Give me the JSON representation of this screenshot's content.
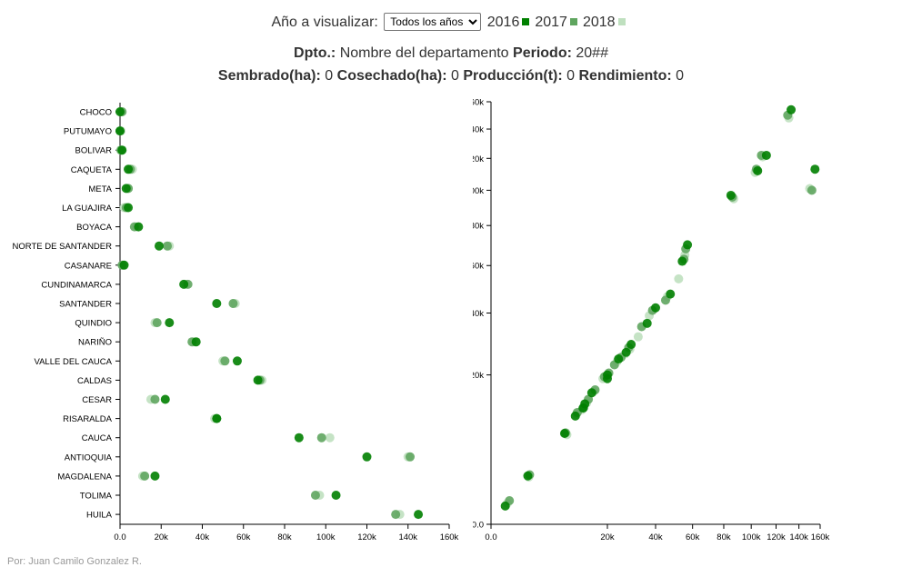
{
  "controls": {
    "year_label": "Año a visualizar:",
    "select_value": "Todos los años",
    "select_options": [
      "Todos los años"
    ],
    "legend": [
      {
        "label": "2016",
        "color": "#008000"
      },
      {
        "label": "2017",
        "color": "#5fa55f"
      },
      {
        "label": "2018",
        "color": "#bfe0bf"
      }
    ]
  },
  "info": {
    "dpto_label": "Dpto.:",
    "dpto_value": "Nombre del departamento",
    "periodo_label": "Periodo:",
    "periodo_value": "20##",
    "sembrado_label": "Sembrado(ha):",
    "sembrado_value": "0",
    "cosechado_label": "Cosechado(ha):",
    "cosechado_value": "0",
    "produccion_label": "Producción(t):",
    "produccion_value": "0",
    "rendimiento_label": "Rendimiento:",
    "rendimiento_value": "0"
  },
  "footer": "Por: Juan Camilo Gonzalez R.",
  "chart_data": [
    {
      "type": "scatter",
      "title": "",
      "xlabel": "",
      "ylabel": "",
      "xlim": [
        0,
        160000
      ],
      "x_ticks": [
        "0.0",
        "20k",
        "40k",
        "60k",
        "80k",
        "100k",
        "120k",
        "140k",
        "160k"
      ],
      "categories": [
        "CHOCO",
        "PUTUMAYO",
        "BOLIVAR",
        "CAQUETA",
        "META",
        "LA GUAJIRA",
        "BOYACA",
        "NORTE DE SANTANDER",
        "CASANARE",
        "CUNDINAMARCA",
        "SANTANDER",
        "QUINDIO",
        "NARIÑO",
        "VALLE DEL CAUCA",
        "CALDAS",
        "CESAR",
        "RISARALDA",
        "CAUCA",
        "ANTIOQUIA",
        "MAGDALENA",
        "TOLIMA",
        "HUILA"
      ],
      "series": [
        {
          "name": "2016",
          "values": [
            0,
            0,
            1000,
            4000,
            3000,
            4000,
            9000,
            19000,
            2000,
            31000,
            47000,
            24000,
            37000,
            57000,
            67000,
            22000,
            47000,
            87000,
            120000,
            17000,
            105000,
            145000
          ]
        },
        {
          "name": "2017",
          "values": [
            1000,
            0,
            500,
            5000,
            4000,
            3000,
            7000,
            23000,
            1000,
            33000,
            55000,
            18000,
            35000,
            51000,
            68000,
            17000,
            47000,
            98000,
            141000,
            12000,
            95000,
            134000
          ]
        },
        {
          "name": "2018",
          "values": [
            500,
            500,
            300,
            6000,
            4000,
            2000,
            8000,
            24000,
            1500,
            32000,
            56000,
            17000,
            36000,
            50000,
            69000,
            15000,
            46000,
            102000,
            140000,
            11000,
            97000,
            136000
          ]
        }
      ]
    },
    {
      "type": "scatter",
      "title": "",
      "xlabel": "",
      "ylabel": "",
      "scale": "sqrt",
      "xlim": [
        0,
        160000
      ],
      "ylim": [
        0,
        160000
      ],
      "x_ticks": [
        "0.0",
        "20k",
        "40k",
        "60k",
        "80k",
        "100k",
        "120k",
        "140k",
        "160k"
      ],
      "y_ticks": [
        "0.0",
        "20k",
        "40k",
        "60k",
        "80k",
        "100k",
        "120k",
        "140k",
        "160k"
      ],
      "series": [
        {
          "name": "2016",
          "points": [
            [
              300,
              300
            ],
            [
              2000,
              2100
            ],
            [
              8000,
              7400
            ],
            [
              10500,
              10500
            ],
            [
              12500,
              12100
            ],
            [
              13000,
              13000
            ],
            [
              20000,
              20000
            ],
            [
              24000,
              24500
            ],
            [
              27000,
              26500
            ],
            [
              29000,
              29000
            ],
            [
              36000,
              36200
            ],
            [
              40000,
              42000
            ],
            [
              47500,
              47500
            ],
            [
              54000,
              62000
            ],
            [
              57000,
              70000
            ],
            [
              85000,
              97000
            ],
            [
              105000,
              112000
            ],
            [
              112000,
              122000
            ],
            [
              133000,
              154000
            ],
            [
              155000,
              113000
            ],
            [
              20000,
              19000
            ],
            [
              15000,
              15500
            ]
          ]
        },
        {
          "name": "2017",
          "points": [
            [
              500,
              500
            ],
            [
              2200,
              2200
            ],
            [
              8200,
              7500
            ],
            [
              11000,
              11200
            ],
            [
              12700,
              12200
            ],
            [
              14000,
              14000
            ],
            [
              20500,
              20500
            ],
            [
              22500,
              22800
            ],
            [
              25000,
              25000
            ],
            [
              28000,
              28000
            ],
            [
              33500,
              35000
            ],
            [
              38500,
              41000
            ],
            [
              45000,
              45000
            ],
            [
              55000,
              63000
            ],
            [
              56000,
              68000
            ],
            [
              86000,
              96000
            ],
            [
              104000,
              113000
            ],
            [
              108000,
              122000
            ],
            [
              130000,
              150000
            ],
            [
              152000,
              100000
            ],
            [
              19000,
              19500
            ],
            [
              16000,
              16200
            ]
          ]
        },
        {
          "name": "2018",
          "points": [
            [
              400,
              400
            ],
            [
              2100,
              2000
            ],
            [
              8500,
              7200
            ],
            [
              10800,
              10900
            ],
            [
              12300,
              11800
            ],
            [
              13500,
              13200
            ],
            [
              19500,
              19300
            ],
            [
              23500,
              23800
            ],
            [
              26500,
              26000
            ],
            [
              28500,
              27500
            ],
            [
              32000,
              31500
            ],
            [
              37000,
              39000
            ],
            [
              46000,
              46500
            ],
            [
              52000,
              54000
            ],
            [
              55500,
              65000
            ],
            [
              87000,
              95000
            ],
            [
              103000,
              111000
            ],
            [
              109000,
              121000
            ],
            [
              131000,
              148000
            ],
            [
              150000,
              101000
            ],
            [
              18500,
              19000
            ],
            [
              15500,
              15800
            ]
          ]
        }
      ]
    }
  ]
}
